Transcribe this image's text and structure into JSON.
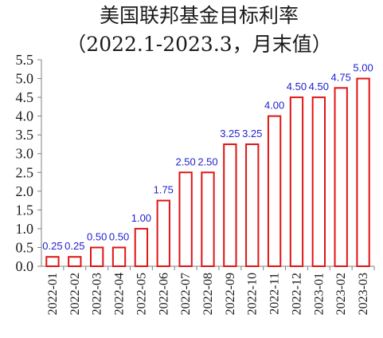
{
  "chart_data": {
    "type": "bar",
    "title_line1": "美国联邦基金目标利率",
    "title_line2": "（2022.1-2023.3，月末值）",
    "categories": [
      "2022-01",
      "2022-02",
      "2022-03",
      "2022-04",
      "2022-05",
      "2022-06",
      "2022-07",
      "2022-08",
      "2022-09",
      "2022-10",
      "2022-11",
      "2022-12",
      "2023-01",
      "2023-02",
      "2023-03"
    ],
    "values": [
      0.25,
      0.25,
      0.5,
      0.5,
      1.0,
      1.75,
      2.5,
      2.5,
      3.25,
      3.25,
      4.0,
      4.5,
      4.5,
      4.75,
      5.0
    ],
    "data_labels": [
      "0.25",
      "0.25",
      "0.50",
      "0.50",
      "1.00",
      "1.75",
      "2.50",
      "2.50",
      "3.25",
      "3.25",
      "4.00",
      "4.50",
      "4.50",
      "4.75",
      "5.00"
    ],
    "ylim": [
      0,
      5.5
    ],
    "yticks": [
      "0.0",
      "0.5",
      "1.0",
      "1.5",
      "2.0",
      "2.5",
      "3.0",
      "3.5",
      "4.0",
      "4.5",
      "5.0",
      "5.5"
    ],
    "grid": false,
    "colors": {
      "bar_edge": "#e01515",
      "bar_fill": "#ffffff",
      "label": "#1f1fcf"
    }
  }
}
